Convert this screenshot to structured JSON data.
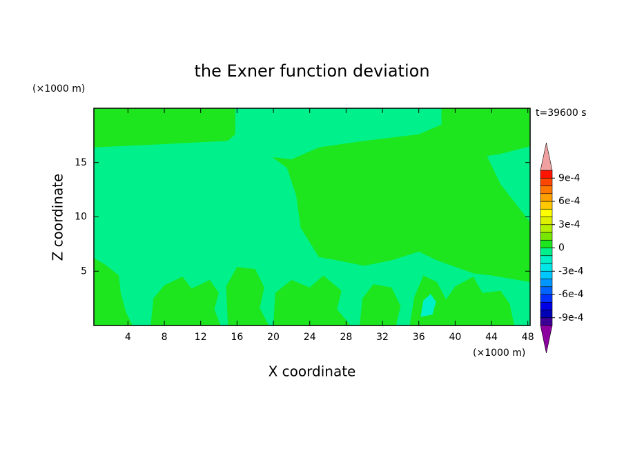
{
  "chart_data": {
    "type": "contour",
    "title": "the Exner function deviation",
    "x_label": "X coordinate",
    "y_label": "Z coordinate",
    "x_unit": "(×1000 m)",
    "y_unit": "(×1000 m)",
    "annotation": "t=39600 s",
    "xlim": [
      0.25,
      48.25
    ],
    "ylim": [
      0,
      20
    ],
    "xticks": [
      4,
      8,
      12,
      16,
      20,
      24,
      28,
      32,
      36,
      40,
      44,
      48
    ],
    "yticks": [
      5,
      10,
      15
    ],
    "background_value": -5e-05,
    "regions": [
      {
        "value": 5e-05,
        "points": [
          [
            0.25,
            20
          ],
          [
            15.8,
            20
          ],
          [
            15.8,
            17.6
          ],
          [
            15,
            17
          ],
          [
            8,
            16.7
          ],
          [
            0.25,
            16.4
          ]
        ]
      },
      {
        "value": 5e-05,
        "points": [
          [
            19.9,
            15.5
          ],
          [
            22,
            15.3
          ],
          [
            25,
            16.4
          ],
          [
            30,
            17
          ],
          [
            36,
            17.6
          ],
          [
            38.5,
            18.5
          ],
          [
            38.5,
            20
          ],
          [
            48.25,
            20
          ],
          [
            48.25,
            16.5
          ],
          [
            45,
            15.8
          ],
          [
            43.5,
            15.6
          ],
          [
            45,
            13
          ],
          [
            48.25,
            9.5
          ],
          [
            48.25,
            4
          ],
          [
            44,
            4.6
          ],
          [
            42,
            4.8
          ],
          [
            38,
            6
          ],
          [
            36,
            6.8
          ],
          [
            33,
            6
          ],
          [
            30,
            5.5
          ],
          [
            27,
            6
          ],
          [
            25,
            6.3
          ],
          [
            23,
            9
          ],
          [
            22.5,
            12
          ],
          [
            21.5,
            14.5
          ]
        ]
      },
      {
        "value": 5e-05,
        "points": [
          [
            0.25,
            0
          ],
          [
            0.25,
            6.2
          ],
          [
            1.5,
            5.6
          ],
          [
            3,
            4.6
          ],
          [
            3.2,
            3
          ],
          [
            3.8,
            1.2
          ],
          [
            4.5,
            0
          ]
        ]
      },
      {
        "value": 5e-05,
        "points": [
          [
            6.5,
            0
          ],
          [
            6.8,
            2.5
          ],
          [
            8,
            3.7
          ],
          [
            10,
            4.5
          ],
          [
            11,
            3.4
          ],
          [
            13,
            4.2
          ],
          [
            14,
            3
          ],
          [
            13.5,
            1.5
          ],
          [
            14.2,
            0
          ]
        ]
      },
      {
        "value": 5e-05,
        "points": [
          [
            15,
            0
          ],
          [
            14.8,
            3.6
          ],
          [
            16,
            5.4
          ],
          [
            18,
            5.2
          ],
          [
            19,
            3.5
          ],
          [
            18.5,
            1.6
          ],
          [
            19.5,
            0
          ]
        ]
      },
      {
        "value": 5e-05,
        "points": [
          [
            20,
            0
          ],
          [
            20.2,
            3
          ],
          [
            22,
            4.2
          ],
          [
            24,
            3.5
          ],
          [
            25.5,
            4.6
          ],
          [
            27.5,
            3.2
          ],
          [
            27,
            1.5
          ],
          [
            28.5,
            0
          ]
        ]
      },
      {
        "value": 5e-05,
        "points": [
          [
            29.5,
            0
          ],
          [
            29.8,
            2.5
          ],
          [
            31,
            3.8
          ],
          [
            33,
            3.5
          ],
          [
            34,
            1.8
          ],
          [
            33.5,
            0
          ]
        ]
      },
      {
        "value": 5e-05,
        "points": [
          [
            35,
            0
          ],
          [
            35.5,
            2.6
          ],
          [
            36.5,
            4.6
          ],
          [
            38,
            4
          ],
          [
            39,
            2.4
          ],
          [
            40,
            3.6
          ],
          [
            42,
            4.5
          ],
          [
            43,
            3
          ],
          [
            45,
            3.2
          ],
          [
            46,
            2
          ],
          [
            46.5,
            0
          ]
        ]
      },
      {
        "value": -0.00015,
        "points": [
          [
            36.2,
            0.8
          ],
          [
            36.5,
            2.3
          ],
          [
            37.3,
            2.9
          ],
          [
            37.9,
            2.2
          ],
          [
            37.5,
            1
          ]
        ]
      }
    ],
    "colorbar": {
      "levels": [
        -0.001,
        -0.0009,
        -0.0008,
        -0.0007,
        -0.0006,
        -0.0005,
        -0.0004,
        -0.0003,
        -0.0002,
        -0.0001,
        0,
        0.0001,
        0.0002,
        0.0003,
        0.0004,
        0.0005,
        0.0006,
        0.0007,
        0.0008,
        0.0009,
        0.001
      ],
      "colors": [
        "#3c0096",
        "#0000b4",
        "#0000e6",
        "#0032ff",
        "#0064ff",
        "#0096ff",
        "#00c8ff",
        "#00e6e6",
        "#00f0c8",
        "#00f08c",
        "#1ee61e",
        "#78e600",
        "#b4f000",
        "#dcf000",
        "#ffff00",
        "#ffc800",
        "#ffa000",
        "#ff7800",
        "#ff4600",
        "#ff1400"
      ],
      "over_color": "#f0a0a0",
      "under_color": "#8c00a0",
      "ticks": [
        {
          "value": -0.0009,
          "label": "-9e-4"
        },
        {
          "value": -0.0006,
          "label": "-6e-4"
        },
        {
          "value": -0.0003,
          "label": "-3e-4"
        },
        0,
        {
          "value": 0.0003,
          "label": "3e-4"
        },
        {
          "value": 0.0006,
          "label": "6e-4"
        },
        {
          "value": 0.0009,
          "label": "9e-4"
        }
      ]
    }
  }
}
